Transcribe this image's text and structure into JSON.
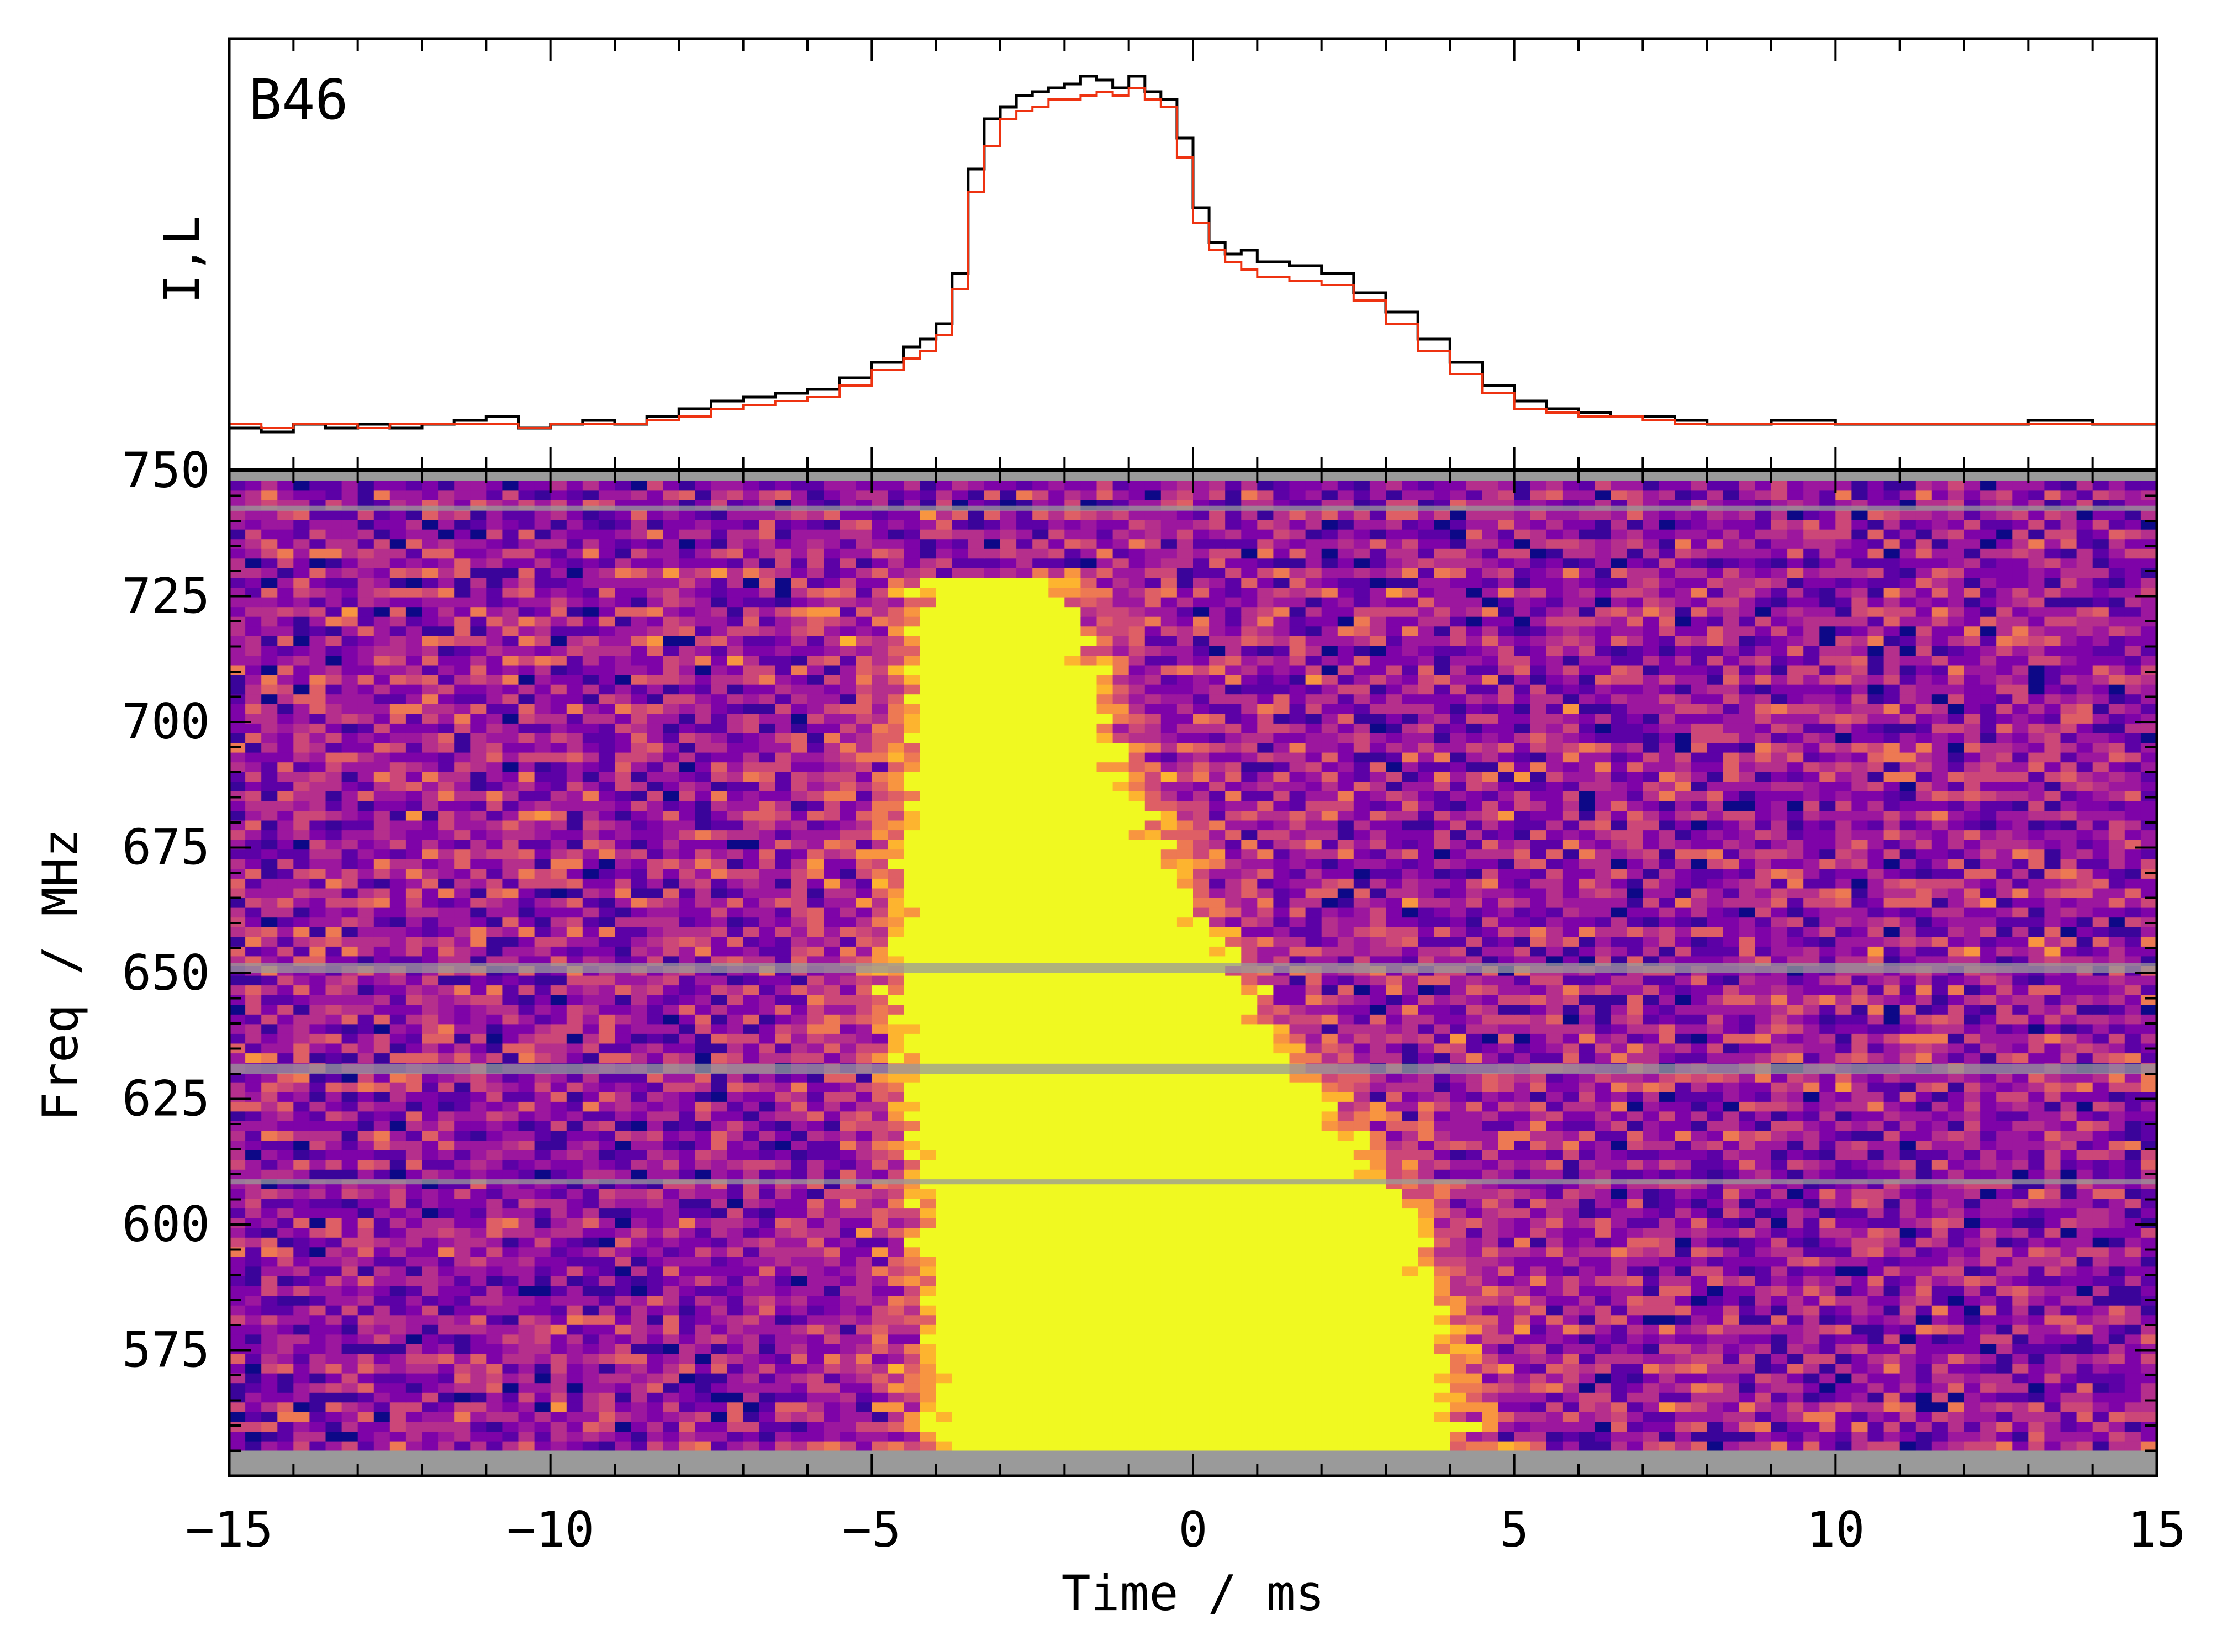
{
  "chart_data": [
    {
      "type": "line",
      "panel": "profile",
      "title": "",
      "annotation": "B46",
      "ylabel": "I,L",
      "xlim": [
        -15,
        15
      ],
      "step": true,
      "x": [
        -15.0,
        -14.5,
        -14.0,
        -13.5,
        -13.0,
        -12.5,
        -12.0,
        -11.5,
        -11.0,
        -10.5,
        -10.0,
        -9.5,
        -9.0,
        -8.5,
        -8.0,
        -7.5,
        -7.0,
        -6.5,
        -6.0,
        -5.5,
        -5.0,
        -4.5,
        -4.25,
        -4.0,
        -3.75,
        -3.5,
        -3.25,
        -3.0,
        -2.75,
        -2.5,
        -2.25,
        -2.0,
        -1.75,
        -1.5,
        -1.25,
        -1.0,
        -0.75,
        -0.5,
        -0.25,
        0.0,
        0.25,
        0.5,
        0.75,
        1.0,
        1.5,
        2.0,
        2.5,
        3.0,
        3.5,
        4.0,
        4.5,
        5.0,
        5.5,
        6.0,
        6.5,
        7.0,
        7.5,
        8.0,
        9.0,
        10.0,
        11.0,
        12.0,
        13.0,
        14.0,
        15.0
      ],
      "series": [
        {
          "name": "I",
          "color": "#000000",
          "values": [
            0.05,
            0.04,
            0.06,
            0.05,
            0.06,
            0.05,
            0.06,
            0.07,
            0.08,
            0.05,
            0.06,
            0.07,
            0.06,
            0.08,
            0.1,
            0.12,
            0.13,
            0.14,
            0.15,
            0.18,
            0.22,
            0.26,
            0.28,
            0.32,
            0.45,
            0.72,
            0.85,
            0.88,
            0.91,
            0.92,
            0.93,
            0.94,
            0.96,
            0.95,
            0.93,
            0.96,
            0.92,
            0.9,
            0.8,
            0.62,
            0.53,
            0.5,
            0.51,
            0.48,
            0.47,
            0.45,
            0.4,
            0.35,
            0.28,
            0.22,
            0.16,
            0.12,
            0.1,
            0.09,
            0.08,
            0.08,
            0.07,
            0.06,
            0.07,
            0.06,
            0.06,
            0.06,
            0.07,
            0.06,
            0.06
          ]
        },
        {
          "name": "L",
          "color": "#ee3311",
          "values": [
            0.06,
            0.05,
            0.06,
            0.06,
            0.05,
            0.06,
            0.06,
            0.06,
            0.06,
            0.05,
            0.06,
            0.06,
            0.06,
            0.07,
            0.08,
            0.1,
            0.11,
            0.12,
            0.13,
            0.16,
            0.2,
            0.23,
            0.25,
            0.29,
            0.41,
            0.66,
            0.78,
            0.85,
            0.87,
            0.88,
            0.9,
            0.9,
            0.91,
            0.92,
            0.91,
            0.93,
            0.9,
            0.88,
            0.75,
            0.58,
            0.51,
            0.48,
            0.46,
            0.44,
            0.43,
            0.42,
            0.38,
            0.32,
            0.25,
            0.19,
            0.14,
            0.1,
            0.09,
            0.08,
            0.08,
            0.07,
            0.06,
            0.06,
            0.06,
            0.06,
            0.06,
            0.06,
            0.06,
            0.06,
            0.06
          ]
        }
      ]
    },
    {
      "type": "heatmap",
      "panel": "dynamic-spectrum",
      "xlabel": "Time / ms",
      "ylabel": "Freq / MHz",
      "xlim": [
        -15,
        15
      ],
      "ylim": [
        550,
        750
      ],
      "xticks": [
        "−15",
        "−10",
        "−5",
        "0",
        "5",
        "10",
        "15"
      ],
      "yticks": [
        "575",
        "600",
        "625",
        "650",
        "675",
        "700",
        "725",
        "750"
      ],
      "colormap": "plasma",
      "burst": {
        "onset_ms_at_freq": [
          [
            725,
            -3.8
          ],
          [
            650,
            -4.2
          ],
          [
            575,
            -3.6
          ]
        ],
        "end_ms_at_freq": [
          [
            725,
            -2.5
          ],
          [
            700,
            -2.0
          ],
          [
            650,
            0.0
          ],
          [
            625,
            1.5
          ],
          [
            600,
            3.0
          ],
          [
            575,
            3.5
          ]
        ],
        "extent_mhz": [
          555,
          728
        ]
      },
      "masked_channels_mhz": [
        [
          650,
          652
        ],
        [
          630,
          632
        ],
        [
          608,
          609
        ],
        [
          742,
          743
        ],
        [
          550,
          555
        ]
      ],
      "noise_colors": [
        "#0d0887",
        "#3a049a",
        "#5c01a6",
        "#7e03a8",
        "#9c179e",
        "#b52f8c",
        "#cc4778",
        "#de5f65",
        "#ed7953",
        "#f89540",
        "#fdb42f"
      ],
      "burst_color": "#f0f921",
      "mask_color": "#9a9a9a"
    }
  ]
}
